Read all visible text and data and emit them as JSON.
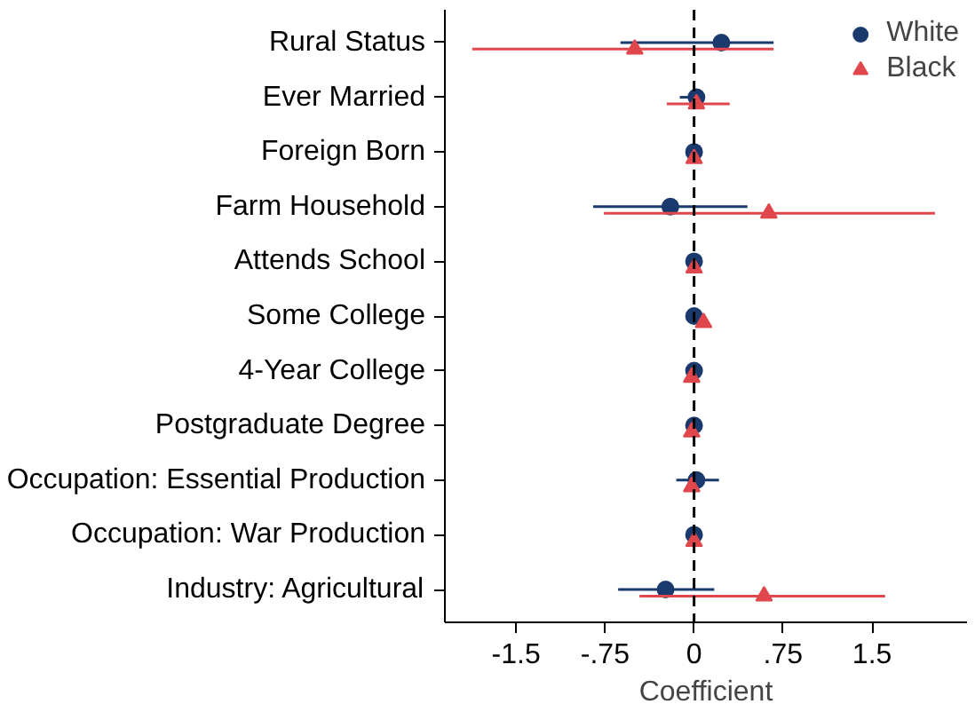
{
  "chart_data": {
    "type": "scatter",
    "orientation": "horizontal",
    "xlabel": "Coefficient",
    "categories": [
      "Rural Status",
      "Ever Married",
      "Foreign Born",
      "Farm Household",
      "Attends School",
      "Some College",
      "4-Year College",
      "Postgraduate Degree",
      "Occupation: Essential Production",
      "Occupation: War Production",
      "Industry: Agricultural"
    ],
    "series": [
      {
        "name": "White",
        "color": "#1a3a6e",
        "marker": "circle",
        "values": [
          0.23,
          0.02,
          0,
          -0.2,
          0,
          0,
          0,
          0,
          0.02,
          0,
          -0.24
        ],
        "errors": [
          [
            -0.62,
            0.67
          ],
          [
            -0.12,
            0.08
          ],
          null,
          [
            -0.85,
            0.45
          ],
          null,
          [
            -0.05,
            0.05
          ],
          null,
          null,
          [
            -0.15,
            0.21
          ],
          null,
          [
            -0.64,
            0.17
          ]
        ]
      },
      {
        "name": "Black",
        "color": "#e0474c",
        "marker": "triangle",
        "values": [
          -0.5,
          0.02,
          0,
          0.63,
          0,
          0.08,
          -0.02,
          -0.02,
          -0.02,
          0,
          0.59
        ],
        "errors": [
          [
            -1.87,
            0.67
          ],
          [
            -0.23,
            0.3
          ],
          null,
          [
            -0.76,
            2.03
          ],
          null,
          null,
          null,
          null,
          null,
          null,
          [
            -0.46,
            1.61
          ]
        ]
      }
    ],
    "xlim": [
      -2.1,
      2.3
    ],
    "xticks": [
      -1.5,
      {
        "value": -0.75,
        "label": "-.75"
      },
      0,
      {
        "value": 0.75,
        "label": ".75"
      },
      1.5
    ],
    "ref_lines": [
      {
        "axis": "x",
        "value": 0,
        "color": "#000000",
        "line_style": "dashed"
      }
    ],
    "grid": false,
    "legend": "top right"
  }
}
